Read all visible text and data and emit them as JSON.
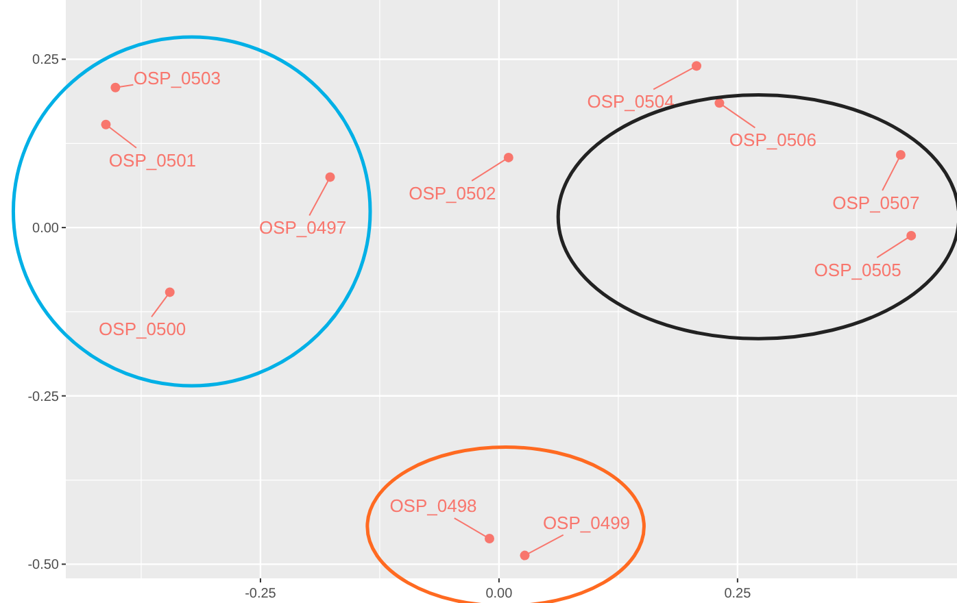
{
  "chart_data": {
    "type": "scatter",
    "x": [
      -0.402,
      -0.412,
      -0.177,
      -0.345,
      0.01,
      0.207,
      0.231,
      0.421,
      0.432,
      -0.01,
      0.027
    ],
    "values": [
      0.208,
      0.153,
      0.075,
      -0.096,
      0.104,
      0.24,
      0.185,
      0.108,
      -0.012,
      -0.462,
      -0.487
    ],
    "color": "#f8766d",
    "marker": "circle",
    "grid": true,
    "xlim": [
      -0.454,
      0.48
    ],
    "ylim": [
      -0.521,
      0.338
    ],
    "xticks": [
      {
        "value": -0.25,
        "label": "-0.25"
      },
      {
        "value": 0,
        "label": "0.00"
      },
      {
        "value": 0.25,
        "label": "0.25"
      }
    ],
    "yticks": [
      {
        "value": -0.5,
        "label": "-0.50"
      },
      {
        "value": -0.25,
        "label": "-0.25"
      },
      {
        "value": 0,
        "label": "0.00"
      },
      {
        "value": 0.25,
        "label": "0.25"
      }
    ],
    "annotations": [
      {
        "text": "OSP_0503",
        "x": -0.402,
        "y": 0.208
      },
      {
        "text": "OSP_0501",
        "x": -0.412,
        "y": 0.153
      },
      {
        "text": "OSP_0497",
        "x": -0.177,
        "y": 0.075
      },
      {
        "text": "OSP_0500",
        "x": -0.345,
        "y": -0.096
      },
      {
        "text": "OSP_0502",
        "x": 0.01,
        "y": 0.104
      },
      {
        "text": "OSP_0504",
        "x": 0.207,
        "y": 0.24
      },
      {
        "text": "OSP_0506",
        "x": 0.231,
        "y": 0.185
      },
      {
        "text": "OSP_0507",
        "x": 0.421,
        "y": 0.108
      },
      {
        "text": "OSP_0505",
        "x": 0.432,
        "y": -0.012
      },
      {
        "text": "OSP_0498",
        "x": -0.01,
        "y": -0.462
      },
      {
        "text": "OSP_0499",
        "x": 0.027,
        "y": -0.487
      }
    ]
  }
}
